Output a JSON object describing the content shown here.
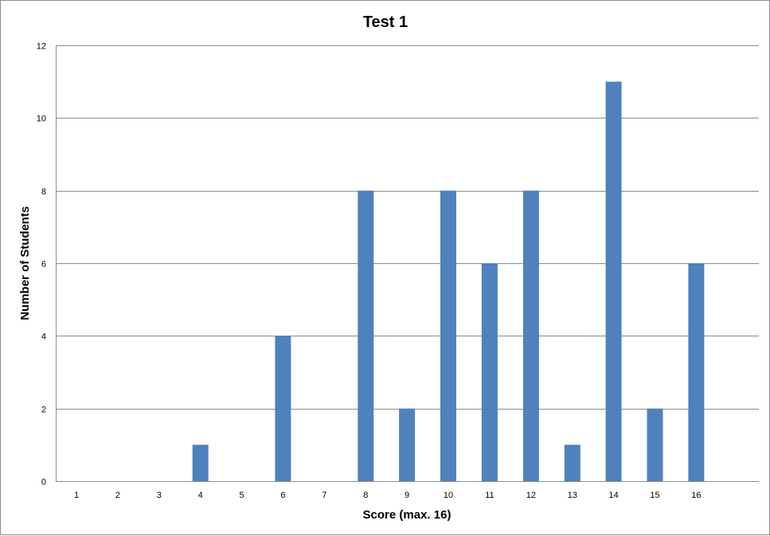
{
  "chart_data": {
    "type": "bar",
    "title": "Test 1",
    "xlabel": "Score (max. 16)",
    "ylabel": "Number of Students",
    "categories": [
      "1",
      "2",
      "3",
      "4",
      "5",
      "6",
      "7",
      "8",
      "9",
      "10",
      "11",
      "12",
      "13",
      "14",
      "15",
      "16"
    ],
    "values": [
      0,
      0,
      0,
      1,
      0,
      4,
      0,
      8,
      2,
      8,
      6,
      8,
      1,
      11,
      2,
      6
    ],
    "yticks": [
      "0",
      "2",
      "4",
      "6",
      "8",
      "10",
      "12"
    ],
    "ylim": [
      0,
      12
    ],
    "grid": "horizontal",
    "legend": "none",
    "bar_color": "#4f81bd"
  }
}
